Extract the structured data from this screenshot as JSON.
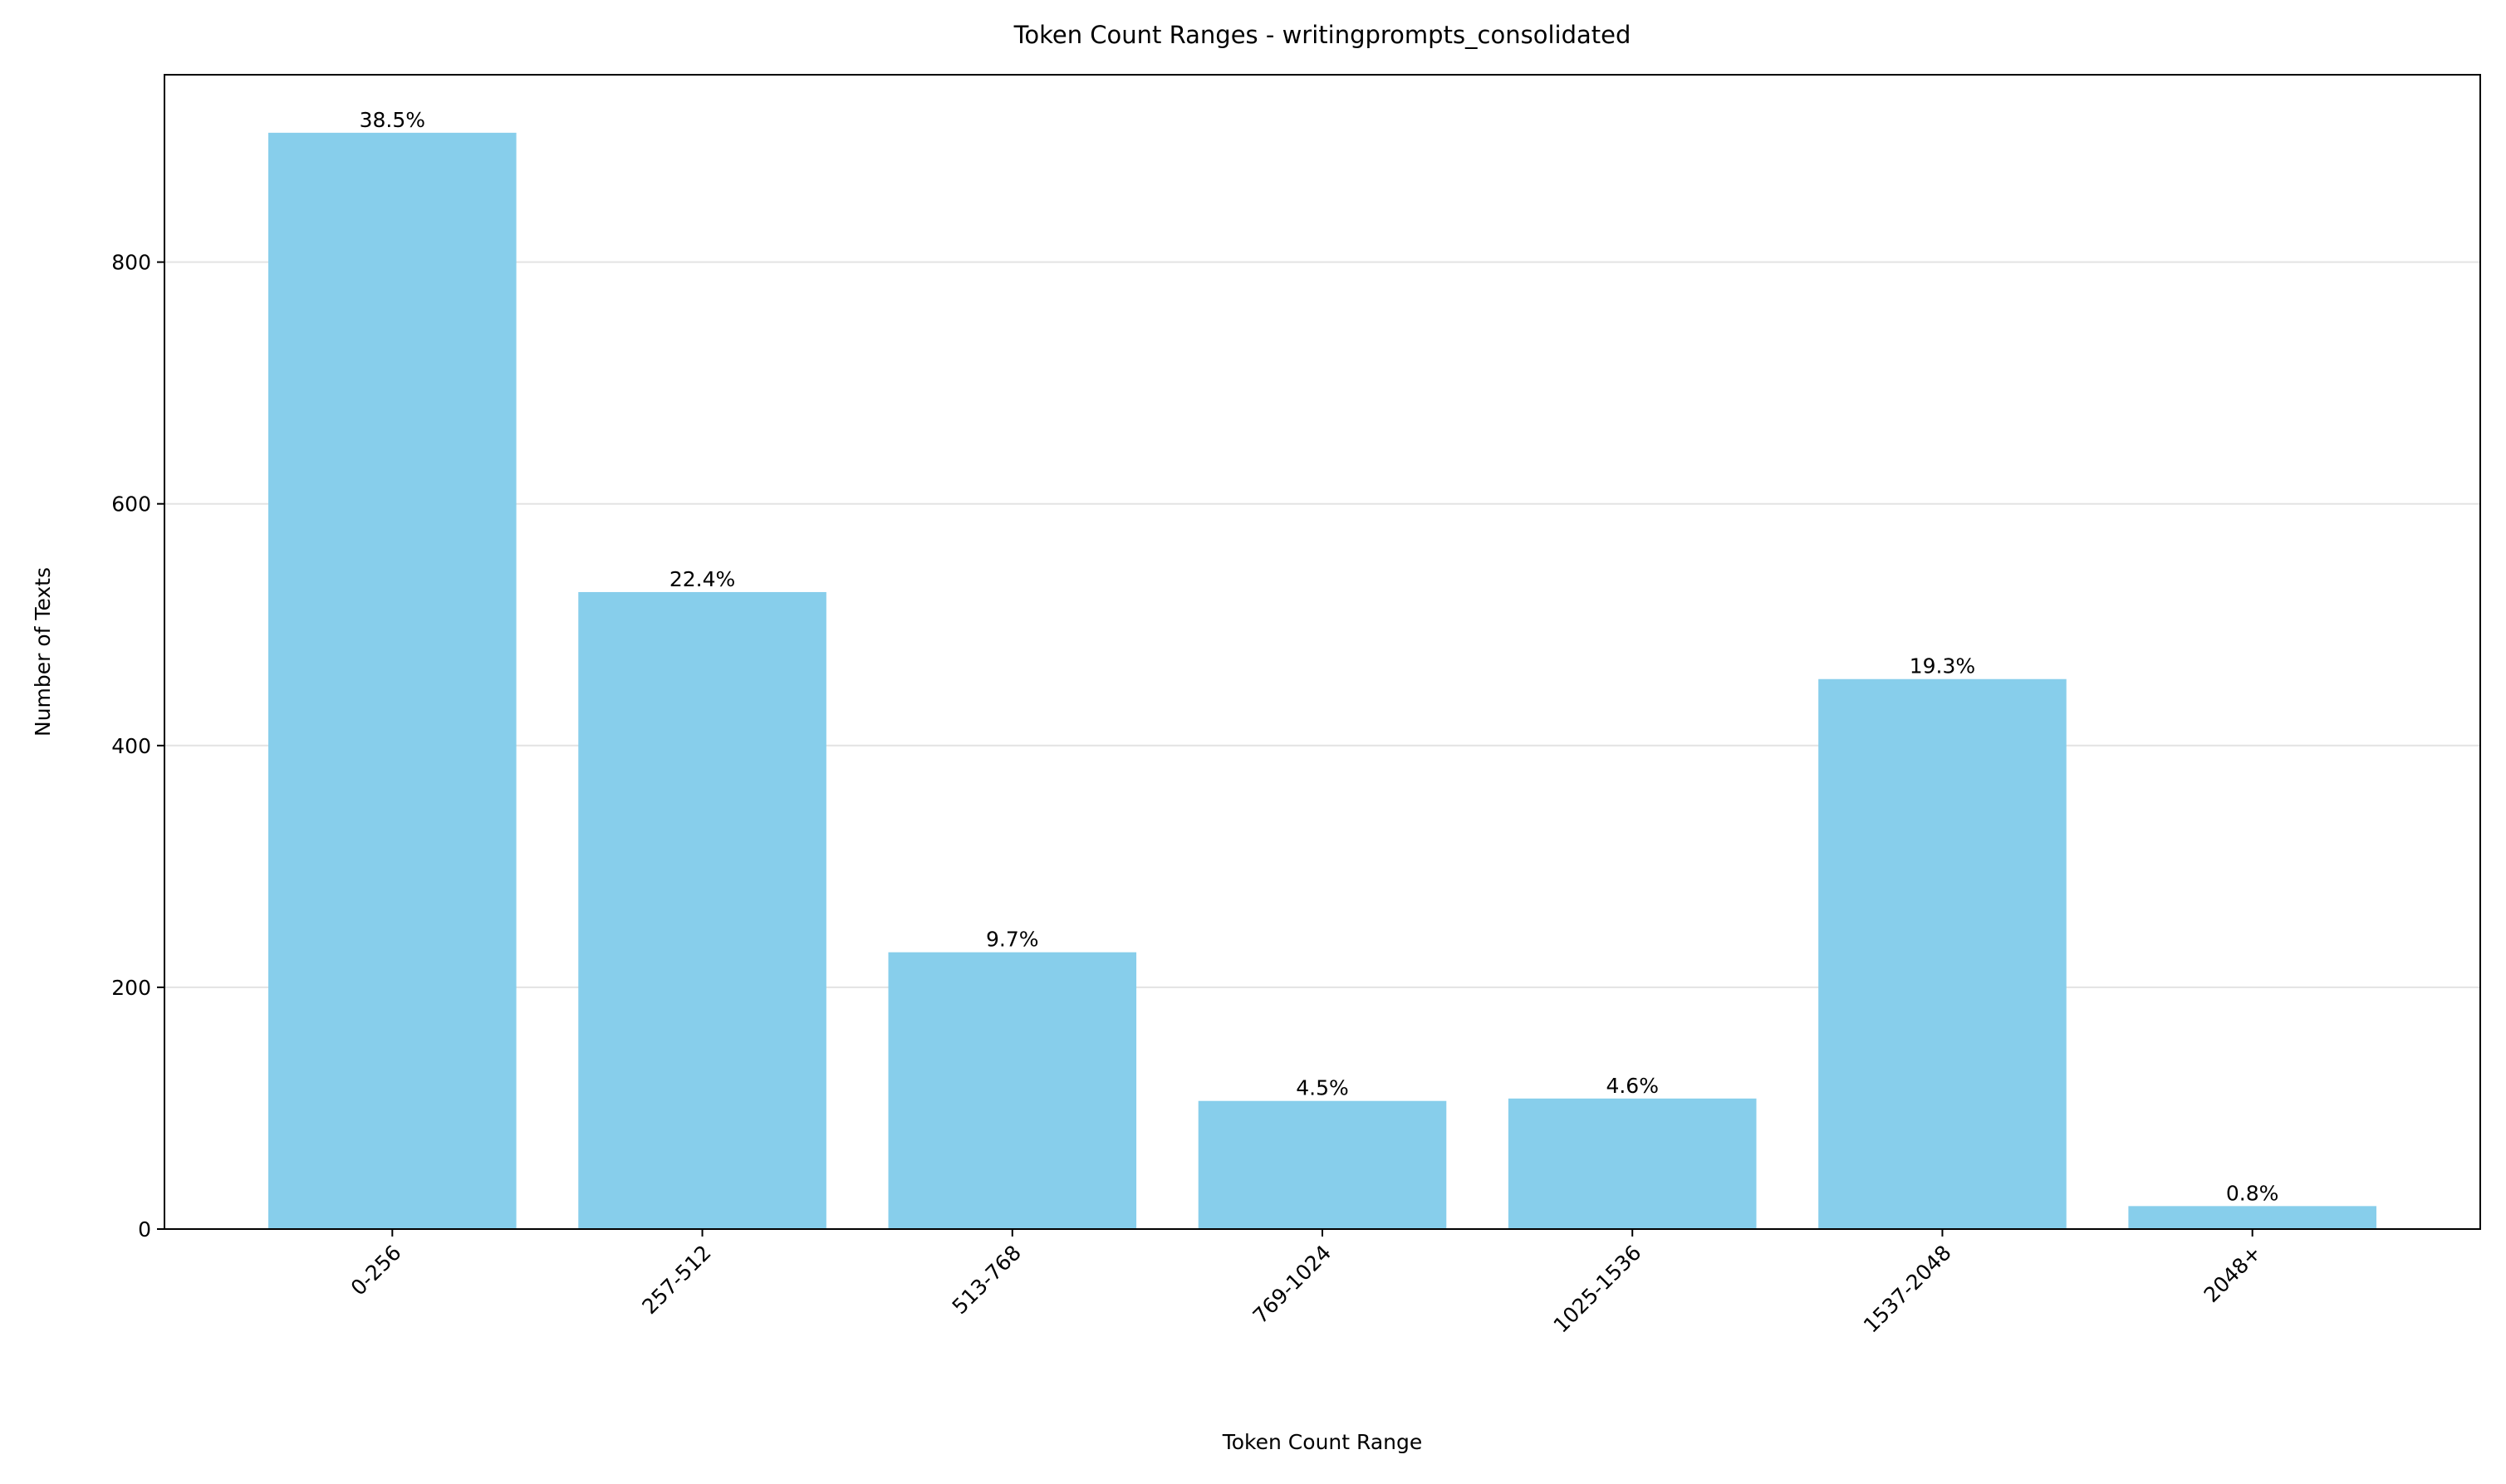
{
  "chart_data": {
    "type": "bar",
    "title": "Token Count Ranges - writingprompts_consolidated",
    "x_label": "Token Count Range",
    "y_label": "Number of Texts",
    "categories": [
      "0-256",
      "257-512",
      "513-768",
      "769-1024",
      "1025-1536",
      "1537-2048",
      "2048+"
    ],
    "values": [
      907,
      527,
      229,
      106,
      108,
      455,
      19
    ],
    "percent_labels": [
      "38.5%",
      "22.4%",
      "9.7%",
      "4.5%",
      "4.6%",
      "19.3%",
      "0.8%"
    ],
    "color": "#87ceeb",
    "ylim": [
      0,
      955
    ],
    "yticks": [
      0,
      200,
      400,
      600,
      800
    ],
    "grid": true
  }
}
